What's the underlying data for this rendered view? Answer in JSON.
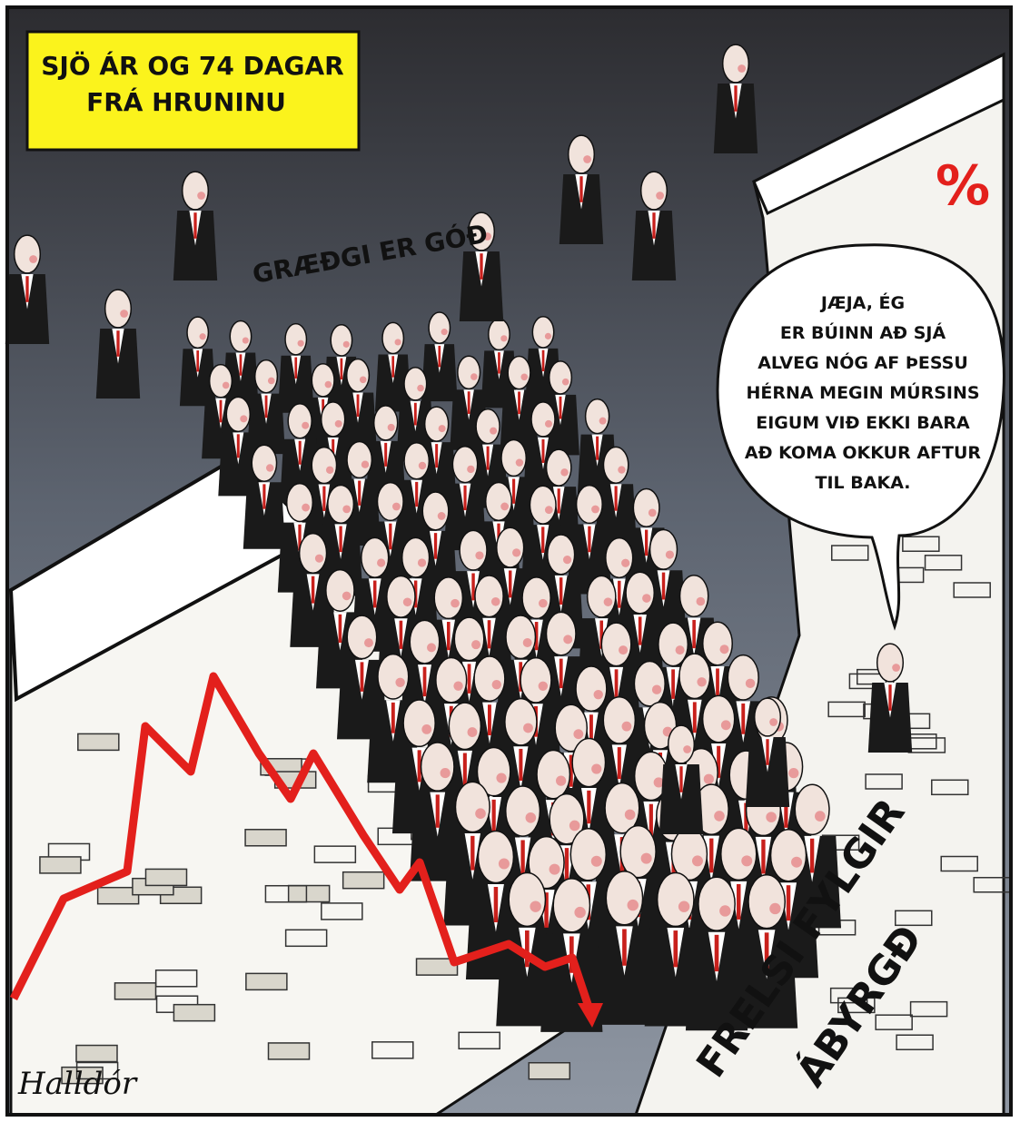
{
  "caption": {
    "lines": [
      "SJÖ ÁR OG 74 DAGAR",
      "FRÁ HRUNINU"
    ]
  },
  "labels": {
    "graffiti": "GRÆÐGI ER GÓÐ",
    "percent": "%",
    "wall": [
      "FRELSI FYLGIR",
      "ÁBYRGÐ"
    ]
  },
  "speech_bubble": {
    "lines": [
      "JÆJA, ÉG",
      "ER BÚINN AÐ SJÁ",
      "ALVEG NÓG AF ÞESSU",
      "HÉRNA MEGIN MÚRSINS",
      "EIGUM VIÐ EKKI BARA",
      "AÐ KOMA OKKUR AFTUR",
      "TIL BAKA."
    ]
  },
  "signature": "Halldór"
}
